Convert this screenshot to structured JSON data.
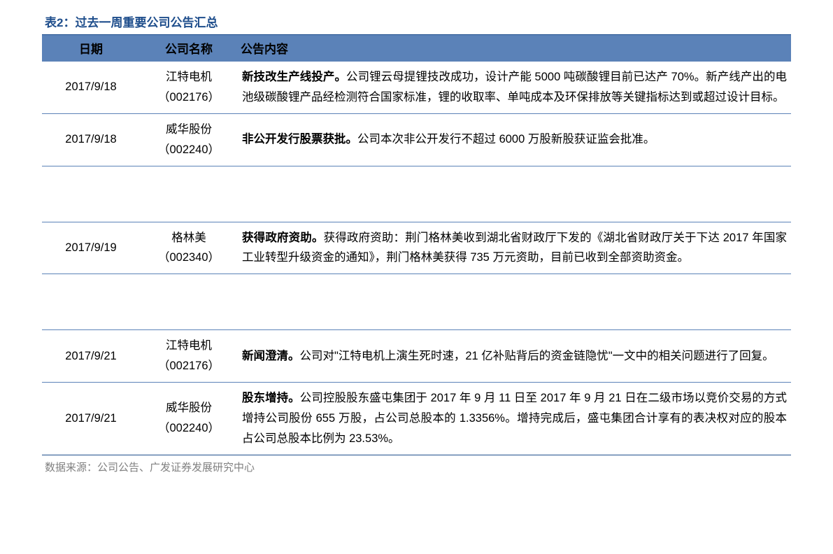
{
  "title": "表2：过去一周重要公司公告汇总",
  "columns": {
    "date": "日期",
    "company": "公司名称",
    "content": "公告内容"
  },
  "rows": [
    {
      "date": "2017/9/18",
      "company": "江特电机（002176）",
      "bold": "新技改生产线投产。",
      "body": "公司锂云母提锂技改成功，设计产能 5000 吨碳酸锂目前已达产 70%。新产线产出的电池级碳酸锂产品经检测符合国家标准，锂的收取率、单吨成本及环保排放等关键指标达到或超过设计目标。"
    },
    {
      "date": "2017/9/18",
      "company": "威华股份（002240）",
      "bold": "非公开发行股票获批。",
      "body": "公司本次非公开发行不超过 6000 万股新股获证监会批准。"
    },
    {
      "date": "2017/9/19",
      "company": "格林美（002340）",
      "bold": "获得政府资助。",
      "body": "获得政府资助：荆门格林美收到湖北省财政厅下发的《湖北省财政厅关于下达 2017 年国家工业转型升级资金的通知》，荆门格林美获得 735 万元资助，目前已收到全部资助资金。"
    },
    {
      "date": "2017/9/21",
      "company": "江特电机（002176）",
      "bold": "新闻澄清。",
      "body": "公司对\"江特电机上演生死时速，21 亿补贴背后的资金链隐忧\"一文中的相关问题进行了回复。"
    },
    {
      "date": "2017/9/21",
      "company": "威华股份（002240）",
      "bold": "股东增持。",
      "body": "公司控股股东盛屯集团于 2017 年 9 月 11 日至 2017 年 9 月 21 日在二级市场以竞价交易的方式增持公司股份 655 万股，占公司总股本的 1.3356%。增持完成后，盛屯集团合计享有的表决权对应的股本占公司总股本比例为 23.53%。"
    }
  ],
  "source": "数据来源：公司公告、广发证券发展研究中心",
  "styling": {
    "header_bg_color": "#5b82b8",
    "border_color": "#1f4e8c",
    "row_border_color": "#5b82b8",
    "title_color": "#1f4e8c",
    "source_color": "#808080",
    "font_size_body": 16.5,
    "font_size_title": 17,
    "line_height": 1.75,
    "col_widths": {
      "date": 140,
      "company": 140
    }
  }
}
